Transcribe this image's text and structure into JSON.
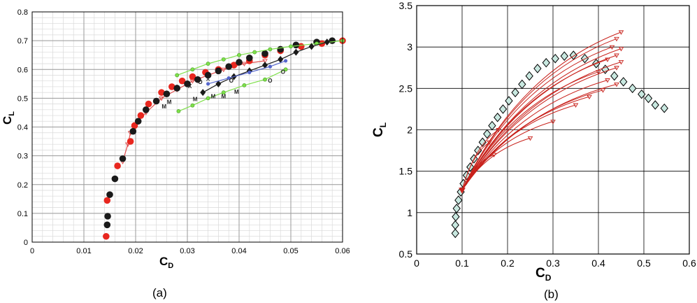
{
  "chart_data": [
    {
      "type": "scatter",
      "panel_label": "(a)",
      "xlabel": "C",
      "xlabel_sub": "D",
      "ylabel": "C",
      "ylabel_sub": "L",
      "xlim": [
        0,
        0.06
      ],
      "ylim": [
        0,
        0.8
      ],
      "xticks": [
        0,
        0.01,
        0.02,
        0.03,
        0.04,
        0.05,
        0.06
      ],
      "xtick_labels": [
        "0",
        "0.01",
        "0.02",
        "0.03",
        "0.04",
        "0.05",
        "0.06"
      ],
      "yticks": [
        0,
        0.1,
        0.2,
        0.3,
        0.4,
        0.5,
        0.6,
        0.7,
        0.8
      ],
      "ytick_labels": [
        "0",
        "0.1",
        "0.2",
        "0.3",
        "0.4",
        "0.5",
        "0.6",
        "0.7",
        "0.8"
      ],
      "grid": "major and minor",
      "colors": {
        "red": "#e8271f",
        "black": "#1a1a1a",
        "green": "#7ee04a",
        "blue": "#5566cc",
        "red_line": "#e05050"
      },
      "series": [
        {
          "color_key": "red_line",
          "marker": "triangle",
          "points": [
            [
              0.0175,
              0.28
            ],
            [
              0.0185,
              0.34
            ],
            [
              0.019,
              0.38
            ],
            [
              0.02,
              0.41
            ],
            [
              0.022,
              0.45
            ],
            [
              0.025,
              0.5
            ],
            [
              0.028,
              0.53
            ],
            [
              0.031,
              0.56
            ],
            [
              0.034,
              0.58
            ],
            [
              0.037,
              0.6
            ],
            [
              0.041,
              0.62
            ],
            [
              0.045,
              0.63
            ]
          ]
        },
        {
          "color_key": "red",
          "marker": "circle",
          "points": [
            [
              0.0143,
              0.02
            ],
            [
              0.0145,
              0.145
            ],
            [
              0.0165,
              0.265
            ],
            [
              0.019,
              0.35
            ],
            [
              0.0198,
              0.405
            ],
            [
              0.021,
              0.44
            ],
            [
              0.0225,
              0.48
            ],
            [
              0.025,
              0.52
            ],
            [
              0.027,
              0.54
            ],
            [
              0.029,
              0.56
            ],
            [
              0.031,
              0.575
            ],
            [
              0.0335,
              0.59
            ],
            [
              0.036,
              0.6
            ],
            [
              0.039,
              0.615
            ],
            [
              0.042,
              0.63
            ],
            [
              0.045,
              0.65
            ],
            [
              0.048,
              0.665
            ],
            [
              0.052,
              0.68
            ],
            [
              0.056,
              0.69
            ],
            [
              0.06,
              0.7
            ]
          ]
        },
        {
          "color_key": "black",
          "marker": "circle",
          "points": [
            [
              0.0145,
              0.06
            ],
            [
              0.0146,
              0.09
            ],
            [
              0.015,
              0.165
            ],
            [
              0.016,
              0.22
            ],
            [
              0.0175,
              0.29
            ],
            [
              0.0195,
              0.385
            ],
            [
              0.0205,
              0.42
            ],
            [
              0.022,
              0.46
            ],
            [
              0.024,
              0.49
            ],
            [
              0.026,
              0.515
            ],
            [
              0.028,
              0.535
            ],
            [
              0.03,
              0.55
            ],
            [
              0.032,
              0.565
            ],
            [
              0.034,
              0.58
            ],
            [
              0.036,
              0.595
            ],
            [
              0.038,
              0.61
            ],
            [
              0.04,
              0.625
            ],
            [
              0.042,
              0.64
            ],
            [
              0.045,
              0.655
            ],
            [
              0.048,
              0.67
            ],
            [
              0.051,
              0.685
            ],
            [
              0.055,
              0.695
            ],
            [
              0.058,
              0.7
            ]
          ]
        },
        {
          "color_key": "green",
          "marker": "circle",
          "points": [
            [
              0.028,
              0.58
            ],
            [
              0.031,
              0.6
            ],
            [
              0.034,
              0.62
            ],
            [
              0.037,
              0.635
            ],
            [
              0.04,
              0.65
            ],
            [
              0.043,
              0.66
            ],
            [
              0.046,
              0.67
            ],
            [
              0.05,
              0.68
            ],
            [
              0.055,
              0.69
            ],
            [
              0.06,
              0.7
            ]
          ]
        },
        {
          "color_key": "green",
          "marker": "circle",
          "points": [
            [
              0.0283,
              0.455
            ],
            [
              0.031,
              0.475
            ],
            [
              0.034,
              0.5
            ],
            [
              0.037,
              0.52
            ],
            [
              0.041,
              0.545
            ],
            [
              0.045,
              0.565
            ],
            [
              0.049,
              0.6
            ]
          ]
        },
        {
          "color_key": "black",
          "marker": "diamond",
          "points": [
            [
              0.033,
              0.52
            ],
            [
              0.036,
              0.55
            ],
            [
              0.039,
              0.575
            ],
            [
              0.042,
              0.595
            ],
            [
              0.045,
              0.615
            ],
            [
              0.048,
              0.635
            ],
            [
              0.051,
              0.66
            ],
            [
              0.054,
              0.68
            ],
            [
              0.057,
              0.695
            ]
          ]
        },
        {
          "color_key": "blue",
          "marker": "circle",
          "points": [
            [
              0.034,
              0.55
            ],
            [
              0.038,
              0.57
            ],
            [
              0.042,
              0.59
            ],
            [
              0.046,
              0.61
            ],
            [
              0.049,
              0.63
            ]
          ]
        }
      ],
      "annotations": [
        {
          "text": "M",
          "x": 0.0265,
          "y": 0.48
        },
        {
          "text": "M",
          "x": 0.0255,
          "y": 0.465
        },
        {
          "text": "M",
          "x": 0.0315,
          "y": 0.49
        },
        {
          "text": "M",
          "x": 0.035,
          "y": 0.5
        },
        {
          "text": "M",
          "x": 0.037,
          "y": 0.5
        },
        {
          "text": "M",
          "x": 0.0395,
          "y": 0.515
        },
        {
          "text": "O",
          "x": 0.0325,
          "y": 0.55
        },
        {
          "text": "O",
          "x": 0.0385,
          "y": 0.555
        },
        {
          "text": "O",
          "x": 0.046,
          "y": 0.555
        },
        {
          "text": "O",
          "x": 0.0485,
          "y": 0.585
        },
        {
          "text": "X",
          "x": 0.0305,
          "y": 0.535
        },
        {
          "text": "X",
          "x": 0.034,
          "y": 0.56
        }
      ]
    },
    {
      "type": "scatter",
      "panel_label": "(b)",
      "xlabel": "C",
      "xlabel_sub": "D",
      "ylabel": "C",
      "ylabel_sub": "L",
      "xlim": [
        0,
        0.6
      ],
      "ylim": [
        0.5,
        3.5
      ],
      "xticks": [
        0,
        0.1,
        0.2,
        0.3,
        0.4,
        0.5,
        0.6
      ],
      "xtick_labels": [
        "0",
        "0.1",
        "0.2",
        "0.3",
        "0.4",
        "0.5",
        "0.6"
      ],
      "yticks": [
        0.5,
        1,
        1.5,
        2,
        2.5,
        3,
        3.5
      ],
      "ytick_labels": [
        "0.5",
        "1",
        "1.5",
        "2",
        "2.5",
        "3",
        "3.5"
      ],
      "grid": "major",
      "colors": {
        "diamond_fill": "#c8e8e0",
        "diamond_stroke": "#000000",
        "red": "#c8211b"
      },
      "diamond_series": {
        "points": [
          [
            0.085,
            0.75
          ],
          [
            0.085,
            0.85
          ],
          [
            0.086,
            0.95
          ],
          [
            0.088,
            1.05
          ],
          [
            0.092,
            1.15
          ],
          [
            0.097,
            1.25
          ],
          [
            0.103,
            1.35
          ],
          [
            0.11,
            1.45
          ],
          [
            0.118,
            1.55
          ],
          [
            0.126,
            1.65
          ],
          [
            0.135,
            1.75
          ],
          [
            0.145,
            1.85
          ],
          [
            0.155,
            1.95
          ],
          [
            0.166,
            2.05
          ],
          [
            0.178,
            2.15
          ],
          [
            0.19,
            2.25
          ],
          [
            0.203,
            2.35
          ],
          [
            0.217,
            2.45
          ],
          [
            0.232,
            2.55
          ],
          [
            0.248,
            2.65
          ],
          [
            0.266,
            2.74
          ],
          [
            0.285,
            2.81
          ],
          [
            0.305,
            2.86
          ],
          [
            0.325,
            2.89
          ],
          [
            0.345,
            2.9
          ],
          [
            0.37,
            2.86
          ],
          [
            0.395,
            2.8
          ],
          [
            0.415,
            2.73
          ],
          [
            0.435,
            2.65
          ],
          [
            0.455,
            2.58
          ],
          [
            0.475,
            2.5
          ],
          [
            0.495,
            2.43
          ],
          [
            0.51,
            2.38
          ],
          [
            0.525,
            2.3
          ],
          [
            0.545,
            2.26
          ]
        ]
      },
      "red_fan": {
        "hub": [
          0.1,
          1.27
        ],
        "ends": [
          [
            0.45,
            3.18
          ],
          [
            0.44,
            3.1
          ],
          [
            0.43,
            3.0
          ],
          [
            0.45,
            2.98
          ],
          [
            0.44,
            2.9
          ],
          [
            0.42,
            2.85
          ],
          [
            0.45,
            2.82
          ],
          [
            0.44,
            2.75
          ],
          [
            0.4,
            2.7
          ],
          [
            0.42,
            2.6
          ],
          [
            0.44,
            2.55
          ],
          [
            0.41,
            2.48
          ],
          [
            0.38,
            2.4
          ],
          [
            0.35,
            2.3
          ],
          [
            0.3,
            2.1
          ],
          [
            0.25,
            1.9
          ],
          [
            0.17,
            1.7
          ],
          [
            0.16,
            1.85
          ],
          [
            0.18,
            2.0
          ]
        ]
      }
    }
  ]
}
